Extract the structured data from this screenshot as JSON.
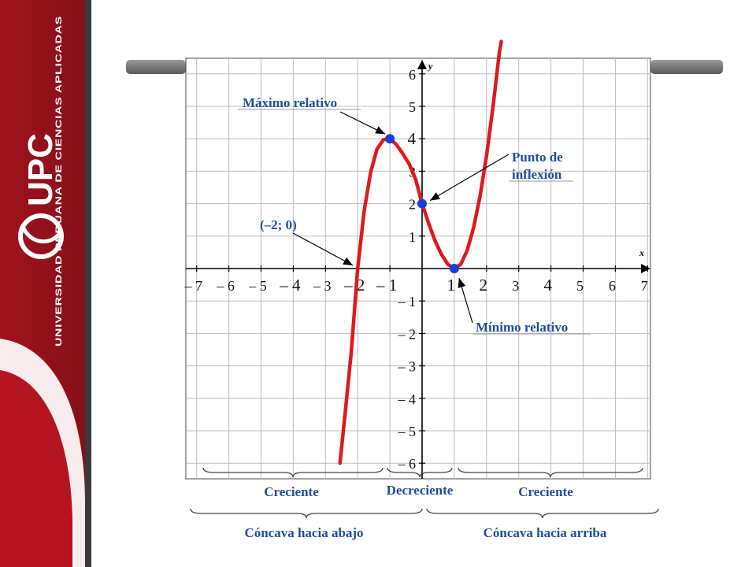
{
  "sidebar": {
    "brand_text": "UPC",
    "university_name": "Universidad Peruana de Ciencias Aplicadas",
    "colors": {
      "primary": "#a0121c",
      "dark": "#7a0d14",
      "gold": "#c9a64a"
    }
  },
  "chart_data": {
    "type": "line",
    "function_points": [
      [
        -2.55,
        -6.0
      ],
      [
        -2.4,
        -4.58
      ],
      [
        -2.2,
        -2.59
      ],
      [
        -2.0,
        0.0
      ],
      [
        -1.8,
        1.77
      ],
      [
        -1.6,
        2.96
      ],
      [
        -1.4,
        3.68
      ],
      [
        -1.2,
        3.97
      ],
      [
        -1.0,
        4.0
      ],
      [
        -0.8,
        3.82
      ],
      [
        -0.6,
        3.54
      ],
      [
        -0.4,
        3.22
      ],
      [
        -0.2,
        2.75
      ],
      [
        0.0,
        2.0
      ],
      [
        0.2,
        1.4
      ],
      [
        0.4,
        0.86
      ],
      [
        0.6,
        0.44
      ],
      [
        0.8,
        0.13
      ],
      [
        1.0,
        0.0
      ],
      [
        1.2,
        0.13
      ],
      [
        1.4,
        0.56
      ],
      [
        1.6,
        1.26
      ],
      [
        1.8,
        2.23
      ],
      [
        2.0,
        3.47
      ],
      [
        2.2,
        4.98
      ],
      [
        2.4,
        6.68
      ],
      [
        2.46,
        7.0
      ]
    ],
    "special_points": [
      {
        "x": -1,
        "y": 4,
        "label": "Máximo relativo"
      },
      {
        "x": 0,
        "y": 2,
        "label": "Punto de inflexión"
      },
      {
        "x": 1,
        "y": 0,
        "label": "Mínimo relativo"
      }
    ],
    "zero_point": {
      "x": -2,
      "y": 0,
      "label": "(–2; 0)"
    },
    "xlim": [
      -7,
      7
    ],
    "ylim": [
      -6.5,
      6.6
    ],
    "xlabel": "x",
    "ylabel": "y",
    "x_ticks": [
      {
        "v": -7,
        "label": "– 7"
      },
      {
        "v": -6,
        "label": "– 6"
      },
      {
        "v": -5,
        "label": "– 5"
      },
      {
        "v": -4,
        "label": "– 4"
      },
      {
        "v": -3,
        "label": "– 3"
      },
      {
        "v": -2,
        "label": "– 2"
      },
      {
        "v": -1,
        "label": "– 1"
      },
      {
        "v": 1,
        "label": "1"
      },
      {
        "v": 2,
        "label": "2"
      },
      {
        "v": 3,
        "label": "3"
      },
      {
        "v": 4,
        "label": "4"
      },
      {
        "v": 5,
        "label": "5"
      },
      {
        "v": 6,
        "label": "6"
      },
      {
        "v": 7,
        "label": "7"
      }
    ],
    "y_ticks": [
      {
        "v": 6,
        "label": "6"
      },
      {
        "v": 5,
        "label": "5"
      },
      {
        "v": 4,
        "label": "4"
      },
      {
        "v": 3,
        "label": "3"
      },
      {
        "v": 2,
        "label": "2"
      },
      {
        "v": 1,
        "label": "1"
      },
      {
        "v": -1,
        "label": "– 1"
      },
      {
        "v": -2,
        "label": "– 2"
      },
      {
        "v": -3,
        "label": "– 3"
      },
      {
        "v": -4,
        "label": "– 4"
      },
      {
        "v": -5,
        "label": "– 5"
      },
      {
        "v": -6,
        "label": "– 6"
      }
    ],
    "grid": true,
    "curve_color": "#e0191d",
    "point_color": "#1a3fd6",
    "label_color": "#1f4e9a",
    "monotonic_intervals": [
      {
        "label": "Creciente",
        "from": -7,
        "to": -1
      },
      {
        "label": "Decreciente",
        "from": -1,
        "to": 1
      },
      {
        "label": "Creciente",
        "from": 1,
        "to": 7
      }
    ],
    "concavity_intervals": [
      {
        "label": "Cóncava hacia abajo",
        "from": -7,
        "to": 0
      },
      {
        "label": "Cóncava hacia arriba",
        "from": 0,
        "to": 7
      }
    ]
  }
}
